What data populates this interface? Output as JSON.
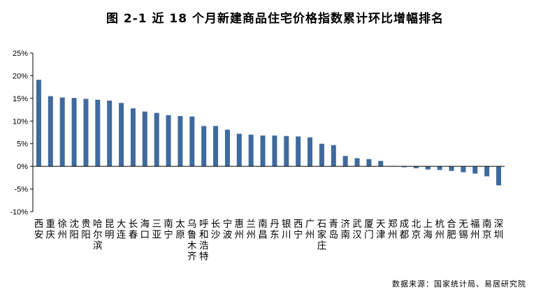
{
  "chart_data": {
    "type": "bar",
    "title": "图 2-1    近 18 个月新建商品住宅价格指数累计环比增幅排名",
    "source": "数据来源：国家统计局、易居研究院",
    "ylim": [
      -10,
      25
    ],
    "yticks": [
      -10,
      -5,
      0,
      5,
      10,
      15,
      20,
      25
    ],
    "ytick_labels": [
      "-10%",
      "-5%",
      "0%",
      "5%",
      "10%",
      "15%",
      "20%",
      "25%"
    ],
    "grid": false,
    "bar_color": "#3F6A9E",
    "categories": [
      "西安",
      "重庆",
      "徐州",
      "沈阳",
      "贵阳",
      "哈尔滨",
      "昆明",
      "大连",
      "长春",
      "海口",
      "三亚",
      "南宁",
      "太原",
      "乌鲁木齐",
      "呼和浩特",
      "长沙",
      "宁波",
      "惠州",
      "兰州",
      "南昌",
      "丹东",
      "银川",
      "西宁",
      "广州",
      "石家庄",
      "青岛",
      "济南",
      "武汉",
      "厦门",
      "天津",
      "郑州",
      "成都",
      "北京",
      "上海",
      "杭州",
      "合肥",
      "无锡",
      "福州",
      "南京",
      "深圳"
    ],
    "values": [
      19.1,
      15.5,
      15.2,
      15.1,
      14.9,
      14.7,
      14.5,
      14.0,
      12.8,
      12.1,
      11.8,
      11.3,
      11.1,
      11.0,
      8.9,
      8.9,
      8.1,
      7.2,
      7.0,
      6.8,
      6.8,
      6.7,
      6.6,
      6.4,
      5.0,
      4.7,
      2.3,
      1.8,
      1.6,
      1.2,
      0.1,
      -0.2,
      -0.4,
      -0.7,
      -0.8,
      -1.0,
      -1.3,
      -1.6,
      -2.2,
      -4.2
    ]
  }
}
